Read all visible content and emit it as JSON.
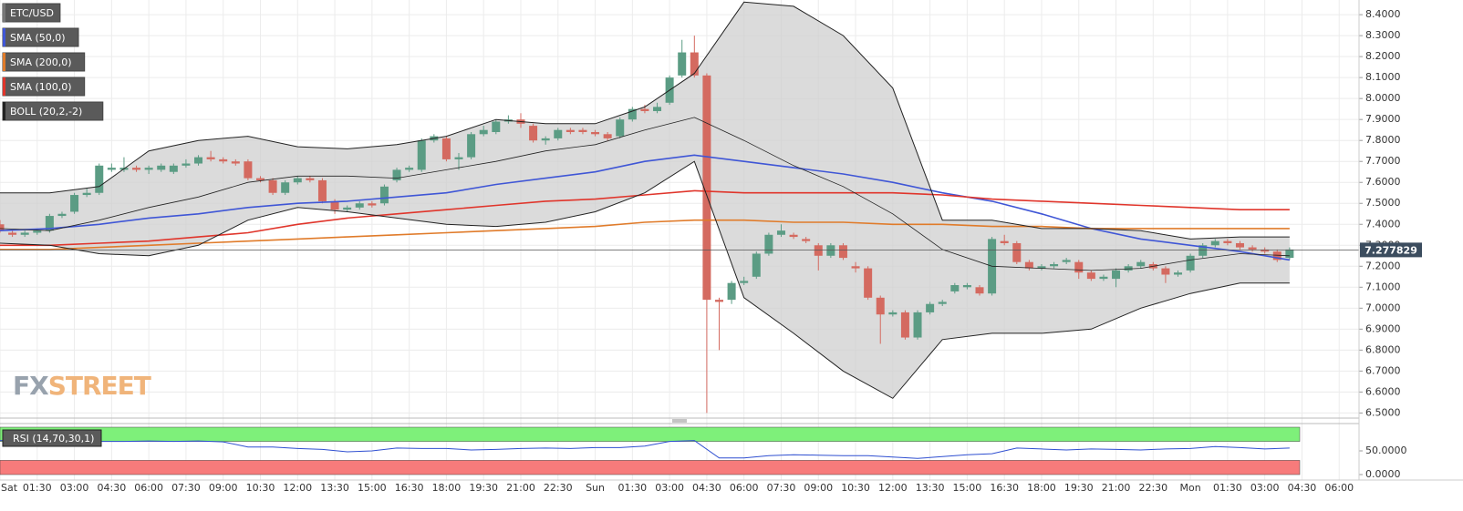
{
  "chart_data": {
    "type": "candlestick",
    "symbol": "ETC/USD",
    "watermark": [
      "FX",
      "STREET"
    ],
    "last_price": 7.277829,
    "xlim": [
      0,
      54.8
    ],
    "ylim": [
      6.48,
      8.47
    ],
    "grid": true,
    "xticks": [
      {
        "value": 0,
        "label": "Sat"
      },
      {
        "value": 1.5,
        "label": "01:30"
      },
      {
        "value": 3,
        "label": "03:00"
      },
      {
        "value": 4.5,
        "label": "04:30"
      },
      {
        "value": 6,
        "label": "06:00"
      },
      {
        "value": 7.5,
        "label": "07:30"
      },
      {
        "value": 9,
        "label": "09:00"
      },
      {
        "value": 10.5,
        "label": "10:30"
      },
      {
        "value": 12,
        "label": "12:00"
      },
      {
        "value": 13.5,
        "label": "13:30"
      },
      {
        "value": 15,
        "label": "15:00"
      },
      {
        "value": 16.5,
        "label": "16:30"
      },
      {
        "value": 18,
        "label": "18:00"
      },
      {
        "value": 19.5,
        "label": "19:30"
      },
      {
        "value": 21,
        "label": "21:00"
      },
      {
        "value": 22.5,
        "label": "22:30"
      },
      {
        "value": 24,
        "label": "Sun"
      },
      {
        "value": 25.5,
        "label": "01:30"
      },
      {
        "value": 27,
        "label": "03:00"
      },
      {
        "value": 28.5,
        "label": "04:30"
      },
      {
        "value": 30,
        "label": "06:00"
      },
      {
        "value": 31.5,
        "label": "07:30"
      },
      {
        "value": 33,
        "label": "09:00"
      },
      {
        "value": 34.5,
        "label": "10:30"
      },
      {
        "value": 36,
        "label": "12:00"
      },
      {
        "value": 37.5,
        "label": "13:30"
      },
      {
        "value": 39,
        "label": "15:00"
      },
      {
        "value": 40.5,
        "label": "16:30"
      },
      {
        "value": 42,
        "label": "18:00"
      },
      {
        "value": 43.5,
        "label": "19:30"
      },
      {
        "value": 45,
        "label": "21:00"
      },
      {
        "value": 46.5,
        "label": "22:30"
      },
      {
        "value": 48,
        "label": "Mon"
      },
      {
        "value": 49.5,
        "label": "01:30"
      },
      {
        "value": 51,
        "label": "03:00"
      },
      {
        "value": 52.5,
        "label": "04:30"
      },
      {
        "value": 54,
        "label": "06:00"
      }
    ],
    "yticks": [
      {
        "value": 8.4,
        "label": "8.4000"
      },
      {
        "value": 8.3,
        "label": "8.3000"
      },
      {
        "value": 8.2,
        "label": "8.2000"
      },
      {
        "value": 8.1,
        "label": "8.1000"
      },
      {
        "value": 8.0,
        "label": "8.0000"
      },
      {
        "value": 7.9,
        "label": "7.9000"
      },
      {
        "value": 7.8,
        "label": "7.8000"
      },
      {
        "value": 7.7,
        "label": "7.7000"
      },
      {
        "value": 7.6,
        "label": "7.6000"
      },
      {
        "value": 7.5,
        "label": "7.5000"
      },
      {
        "value": 7.4,
        "label": "7.4000"
      },
      {
        "value": 7.3,
        "label": "7.3000"
      },
      {
        "value": 7.2,
        "label": "7.2000"
      },
      {
        "value": 7.1,
        "label": "7.1000"
      },
      {
        "value": 7.0,
        "label": "7.0000"
      },
      {
        "value": 6.9,
        "label": "6.9000"
      },
      {
        "value": 6.8,
        "label": "6.8000"
      },
      {
        "value": 6.7,
        "label": "6.7000"
      },
      {
        "value": 6.6,
        "label": "6.6000"
      },
      {
        "value": 6.5,
        "label": "6.5000"
      }
    ],
    "candles": {
      "up_color": "#5b9c84",
      "down_color": "#d46a60",
      "x": [
        0,
        0.5,
        1,
        1.5,
        2,
        2.5,
        3,
        3.5,
        4,
        4.5,
        5,
        5.5,
        6,
        6.5,
        7,
        7.5,
        8,
        8.5,
        9,
        9.5,
        10,
        10.5,
        11,
        11.5,
        12,
        12.5,
        13,
        13.5,
        14,
        14.5,
        15,
        15.5,
        16,
        16.5,
        17,
        17.5,
        18,
        18.5,
        19,
        19.5,
        20,
        20.5,
        21,
        21.5,
        22,
        22.5,
        23,
        23.5,
        24,
        24.5,
        25,
        25.5,
        26,
        26.5,
        27,
        27.5,
        28,
        28.5,
        29,
        29.5,
        30,
        30.5,
        31,
        31.5,
        32,
        32.5,
        33,
        33.5,
        34,
        34.5,
        35,
        35.5,
        36,
        36.5,
        37,
        37.5,
        38,
        38.5,
        39,
        39.5,
        40,
        40.5,
        41,
        41.5,
        42,
        42.5,
        43,
        43.5,
        44,
        44.5,
        45,
        45.5,
        46,
        46.5,
        47,
        47.5,
        48,
        48.5,
        49,
        49.5,
        50,
        50.5,
        51,
        51.5,
        52
      ],
      "open": [
        7.4,
        7.36,
        7.35,
        7.36,
        7.37,
        7.44,
        7.46,
        7.54,
        7.55,
        7.66,
        7.66,
        7.67,
        7.66,
        7.66,
        7.65,
        7.68,
        7.69,
        7.72,
        7.71,
        7.7,
        7.7,
        7.62,
        7.61,
        7.55,
        7.6,
        7.62,
        7.61,
        7.51,
        7.47,
        7.48,
        7.5,
        7.5,
        7.61,
        7.66,
        7.66,
        7.8,
        7.81,
        7.71,
        7.72,
        7.83,
        7.84,
        7.89,
        7.9,
        7.87,
        7.8,
        7.81,
        7.85,
        7.85,
        7.84,
        7.83,
        7.82,
        7.9,
        7.95,
        7.94,
        7.98,
        8.11,
        8.22,
        8.11,
        7.04,
        7.04,
        7.12,
        7.15,
        7.26,
        7.35,
        7.35,
        7.33,
        7.3,
        7.25,
        7.3,
        7.2,
        7.19,
        7.05,
        6.97,
        6.98,
        6.86,
        6.98,
        7.02,
        7.08,
        7.1,
        7.1,
        7.07,
        7.32,
        7.31,
        7.22,
        7.19,
        7.2,
        7.22,
        7.22,
        7.17,
        7.14,
        7.14,
        7.18,
        7.2,
        7.21,
        7.19,
        7.16,
        7.18,
        7.25,
        7.3,
        7.32,
        7.31,
        7.29,
        7.28,
        7.27,
        7.24
      ],
      "high": [
        7.42,
        7.37,
        7.37,
        7.38,
        7.45,
        7.46,
        7.55,
        7.57,
        7.69,
        7.69,
        7.72,
        7.68,
        7.68,
        7.69,
        7.69,
        7.71,
        7.73,
        7.75,
        7.72,
        7.71,
        7.71,
        7.63,
        7.62,
        7.61,
        7.63,
        7.63,
        7.62,
        7.52,
        7.49,
        7.51,
        7.51,
        7.59,
        7.67,
        7.68,
        7.81,
        7.83,
        7.82,
        7.74,
        7.84,
        7.87,
        7.9,
        7.92,
        7.93,
        7.88,
        7.82,
        7.86,
        7.86,
        7.86,
        7.85,
        7.84,
        7.91,
        7.96,
        7.97,
        7.98,
        8.11,
        8.28,
        8.3,
        8.12,
        7.05,
        7.13,
        7.15,
        7.27,
        7.36,
        7.4,
        7.36,
        7.34,
        7.31,
        7.31,
        7.31,
        7.22,
        7.2,
        7.06,
        6.99,
        6.99,
        6.99,
        7.03,
        7.04,
        7.12,
        7.12,
        7.11,
        7.34,
        7.35,
        7.32,
        7.23,
        7.21,
        7.22,
        7.24,
        7.23,
        7.18,
        7.16,
        7.19,
        7.21,
        7.23,
        7.22,
        7.2,
        7.18,
        7.26,
        7.31,
        7.33,
        7.33,
        7.32,
        7.3,
        7.29,
        7.28,
        7.29
      ],
      "low": [
        7.36,
        7.34,
        7.34,
        7.35,
        7.36,
        7.43,
        7.45,
        7.53,
        7.54,
        7.65,
        7.65,
        7.65,
        7.64,
        7.65,
        7.64,
        7.67,
        7.68,
        7.7,
        7.69,
        7.68,
        7.61,
        7.6,
        7.54,
        7.54,
        7.59,
        7.6,
        7.5,
        7.45,
        7.46,
        7.47,
        7.48,
        7.49,
        7.6,
        7.65,
        7.65,
        7.79,
        7.7,
        7.66,
        7.71,
        7.82,
        7.83,
        7.88,
        7.86,
        7.79,
        7.78,
        7.8,
        7.83,
        7.83,
        7.82,
        7.8,
        7.81,
        7.89,
        7.93,
        7.93,
        7.97,
        8.1,
        8.1,
        6.5,
        6.8,
        7.02,
        7.11,
        7.14,
        7.25,
        7.34,
        7.33,
        7.31,
        7.18,
        7.24,
        7.23,
        7.17,
        7.04,
        6.83,
        6.96,
        6.85,
        6.85,
        6.97,
        7.01,
        7.07,
        7.09,
        7.06,
        7.06,
        7.3,
        7.21,
        7.18,
        7.18,
        7.19,
        7.21,
        7.14,
        7.13,
        7.13,
        7.1,
        7.17,
        7.19,
        7.18,
        7.12,
        7.15,
        7.17,
        7.24,
        7.29,
        7.3,
        7.28,
        7.27,
        7.26,
        7.22,
        7.23
      ],
      "close": [
        7.37,
        7.35,
        7.36,
        7.37,
        7.44,
        7.45,
        7.54,
        7.55,
        7.68,
        7.67,
        7.67,
        7.66,
        7.67,
        7.68,
        7.68,
        7.69,
        7.72,
        7.71,
        7.7,
        7.69,
        7.62,
        7.61,
        7.55,
        7.6,
        7.62,
        7.61,
        7.51,
        7.47,
        7.48,
        7.5,
        7.49,
        7.58,
        7.66,
        7.67,
        7.8,
        7.82,
        7.71,
        7.72,
        7.83,
        7.85,
        7.89,
        7.9,
        7.88,
        7.8,
        7.81,
        7.85,
        7.84,
        7.84,
        7.83,
        7.81,
        7.9,
        7.95,
        7.94,
        7.96,
        8.1,
        8.22,
        8.11,
        7.04,
        7.03,
        7.12,
        7.13,
        7.26,
        7.35,
        7.37,
        7.34,
        7.32,
        7.25,
        7.3,
        7.24,
        7.19,
        7.05,
        6.97,
        6.98,
        6.86,
        6.98,
        7.02,
        7.03,
        7.11,
        7.11,
        7.07,
        7.33,
        7.31,
        7.22,
        7.19,
        7.2,
        7.21,
        7.23,
        7.17,
        7.14,
        7.15,
        7.18,
        7.2,
        7.22,
        7.19,
        7.16,
        7.17,
        7.25,
        7.3,
        7.32,
        7.31,
        7.29,
        7.28,
        7.27,
        7.23,
        7.28
      ]
    },
    "series_x": [
      0,
      2,
      4,
      6,
      8,
      10,
      12,
      14,
      16,
      18,
      20,
      22,
      24,
      26,
      28,
      30,
      32,
      34,
      36,
      38,
      40,
      42,
      44,
      46,
      48,
      50,
      52
    ],
    "series": [
      {
        "name": "SMA (50,0)",
        "color": "#3f56d6",
        "values": [
          7.37,
          7.38,
          7.4,
          7.43,
          7.45,
          7.48,
          7.5,
          7.51,
          7.53,
          7.55,
          7.59,
          7.62,
          7.65,
          7.7,
          7.73,
          7.7,
          7.67,
          7.64,
          7.6,
          7.55,
          7.51,
          7.45,
          7.38,
          7.33,
          7.3,
          7.27,
          7.23
        ]
      },
      {
        "name": "SMA (200,0)",
        "color": "#e07b2a",
        "values": [
          7.28,
          7.28,
          7.29,
          7.3,
          7.31,
          7.32,
          7.33,
          7.34,
          7.35,
          7.36,
          7.37,
          7.38,
          7.39,
          7.41,
          7.42,
          7.42,
          7.41,
          7.41,
          7.4,
          7.4,
          7.39,
          7.39,
          7.38,
          7.38,
          7.38,
          7.38,
          7.38
        ]
      },
      {
        "name": "SMA (100,0)",
        "color": "#e0352b",
        "values": [
          7.3,
          7.3,
          7.31,
          7.32,
          7.34,
          7.36,
          7.4,
          7.43,
          7.45,
          7.47,
          7.49,
          7.51,
          7.52,
          7.54,
          7.56,
          7.55,
          7.55,
          7.55,
          7.55,
          7.54,
          7.52,
          7.51,
          7.5,
          7.49,
          7.48,
          7.47,
          7.47
        ]
      },
      {
        "name": "BOLL (20,2,-2)",
        "color": "#222222",
        "upper": [
          7.55,
          7.55,
          7.58,
          7.75,
          7.8,
          7.82,
          7.77,
          7.76,
          7.78,
          7.82,
          7.9,
          7.88,
          7.88,
          7.96,
          8.12,
          8.46,
          8.44,
          8.3,
          8.05,
          7.42,
          7.42,
          7.38,
          7.38,
          7.37,
          7.33,
          7.34,
          7.34
        ],
        "middle": [
          7.38,
          7.37,
          7.42,
          7.48,
          7.53,
          7.6,
          7.63,
          7.63,
          7.62,
          7.66,
          7.7,
          7.75,
          7.78,
          7.85,
          7.91,
          7.8,
          7.68,
          7.58,
          7.45,
          7.28,
          7.2,
          7.19,
          7.18,
          7.19,
          7.23,
          7.26,
          7.25
        ],
        "lower": [
          7.31,
          7.3,
          7.26,
          7.25,
          7.3,
          7.42,
          7.48,
          7.46,
          7.43,
          7.4,
          7.39,
          7.41,
          7.46,
          7.55,
          7.7,
          7.05,
          6.88,
          6.7,
          6.57,
          6.85,
          6.88,
          6.88,
          6.9,
          7.0,
          7.07,
          7.12,
          7.12
        ]
      }
    ],
    "rsi": {
      "name": "RSI (14,70,30,1)",
      "color": "#2f4fd1",
      "ylim": [
        0,
        100
      ],
      "yticks": [
        {
          "value": 50,
          "label": "50.0000"
        },
        {
          "value": 0,
          "label": "0.0000"
        }
      ],
      "overbought": 70,
      "oversold": 30,
      "x": [
        0,
        1,
        2,
        3,
        4,
        5,
        6,
        7,
        8,
        9,
        10,
        11,
        12,
        13,
        14,
        15,
        16,
        17,
        18,
        19,
        20,
        21,
        22,
        23,
        24,
        25,
        26,
        27,
        28,
        29,
        30,
        31,
        32,
        33,
        34,
        35,
        36,
        37,
        38,
        39,
        40,
        41,
        42,
        43,
        44,
        45,
        46,
        47,
        48,
        49,
        50,
        51,
        52
      ],
      "values": [
        72,
        72,
        71,
        71,
        70,
        70,
        71,
        70,
        71,
        69,
        58,
        58,
        55,
        53,
        48,
        50,
        56,
        55,
        55,
        52,
        53,
        55,
        56,
        55,
        57,
        57,
        60,
        70,
        72,
        35,
        35,
        40,
        42,
        41,
        40,
        40,
        37,
        34,
        38,
        42,
        44,
        56,
        54,
        52,
        54,
        53,
        52,
        54,
        55,
        59,
        57,
        54,
        56
      ]
    }
  }
}
